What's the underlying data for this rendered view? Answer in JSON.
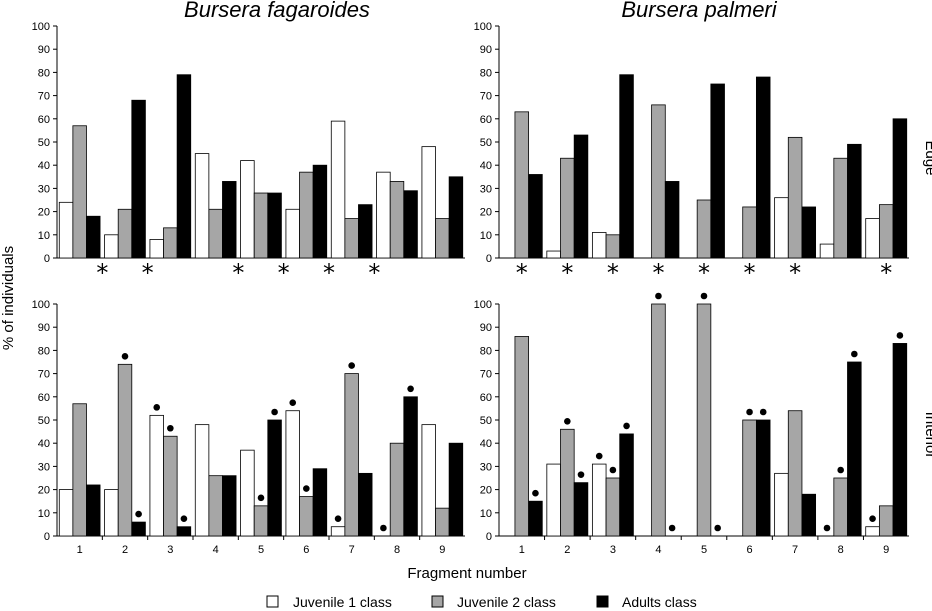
{
  "chart_data": {
    "type": "bar",
    "categories": [
      "1",
      "2",
      "3",
      "4",
      "5",
      "6",
      "7",
      "8",
      "9"
    ],
    "xlabel": "Fragment number",
    "ylabel": "% of individuals",
    "ylim": [
      0,
      100
    ],
    "yticks": [
      "0",
      "10",
      "20",
      "30",
      "40",
      "50",
      "60",
      "70",
      "80",
      "90",
      "100"
    ],
    "grid": false,
    "legend_position": "bottom",
    "colors": {
      "juvenile1": "#ffffff",
      "juvenile2": "#a6a6a6",
      "adults": "#000000"
    },
    "legend": [
      "Juvenile 1 class",
      "Juvenile 2 class",
      "Adults class"
    ],
    "panels": [
      {
        "title": "Bursera fagaroides",
        "row_label": "",
        "series": [
          {
            "name": "Juvenile 1 class",
            "values": [
              24,
              10,
              8,
              45,
              42,
              21,
              59,
              37,
              48
            ]
          },
          {
            "name": "Juvenile 2 class",
            "values": [
              57,
              21,
              13,
              21,
              28,
              37,
              17,
              33,
              17
            ]
          },
          {
            "name": "Adults class",
            "values": [
              18,
              68,
              79,
              33,
              28,
              40,
              23,
              29,
              35
            ]
          }
        ],
        "marker_symbol": "*",
        "markers": [
          [
            "2",
            "between"
          ],
          [
            "3",
            "between"
          ],
          [
            "5",
            "between"
          ],
          [
            "6",
            "between"
          ],
          [
            "7",
            "between"
          ],
          [
            "8",
            "between"
          ]
        ]
      },
      {
        "title": "Bursera palmeri",
        "row_label": "Edge",
        "series": [
          {
            "name": "Juvenile 1 class",
            "values": [
              0,
              3,
              11,
              0,
              0,
              0,
              26,
              6,
              17
            ]
          },
          {
            "name": "Juvenile 2 class",
            "values": [
              63,
              43,
              10,
              66,
              25,
              22,
              52,
              43,
              23
            ]
          },
          {
            "name": "Adults class",
            "values": [
              36,
              53,
              79,
              33,
              75,
              78,
              22,
              49,
              60
            ]
          }
        ],
        "marker_symbol": "*",
        "markers": [
          [
            "1",
            "center"
          ],
          [
            "2",
            "center"
          ],
          [
            "3",
            "center"
          ],
          [
            "4",
            "center"
          ],
          [
            "5",
            "center"
          ],
          [
            "6",
            "center"
          ],
          [
            "7",
            "center"
          ],
          [
            "9",
            "center"
          ]
        ]
      },
      {
        "title": "",
        "row_label": "",
        "series": [
          {
            "name": "Juvenile 1 class",
            "values": [
              20,
              20,
              52,
              48,
              37,
              54,
              4,
              0,
              48
            ]
          },
          {
            "name": "Juvenile 2 class",
            "values": [
              57,
              74,
              43,
              26,
              13,
              17,
              70,
              40,
              12
            ]
          },
          {
            "name": "Adults class",
            "values": [
              22,
              6,
              4,
              26,
              50,
              29,
              27,
              60,
              40
            ]
          }
        ],
        "marker_symbol": "dot",
        "dots": [
          [
            2,
            1
          ],
          [
            2,
            2
          ],
          [
            3,
            0
          ],
          [
            3,
            1
          ],
          [
            3,
            2
          ],
          [
            5,
            1
          ],
          [
            5,
            2
          ],
          [
            6,
            0
          ],
          [
            6,
            1
          ],
          [
            7,
            0
          ],
          [
            7,
            1
          ],
          [
            8,
            0
          ],
          [
            8,
            2
          ]
        ]
      },
      {
        "title": "",
        "row_label": "Interior",
        "series": [
          {
            "name": "Juvenile 1 class",
            "values": [
              0,
              31,
              31,
              0,
              0,
              0,
              27,
              0,
              4
            ]
          },
          {
            "name": "Juvenile 2 class",
            "values": [
              86,
              46,
              25,
              100,
              100,
              50,
              54,
              25,
              13
            ]
          },
          {
            "name": "Adults class",
            "values": [
              15,
              23,
              44,
              0,
              0,
              50,
              18,
              75,
              83
            ]
          }
        ],
        "marker_symbol": "dot",
        "dots": [
          [
            1,
            2
          ],
          [
            2,
            1
          ],
          [
            2,
            2
          ],
          [
            3,
            0
          ],
          [
            3,
            1
          ],
          [
            3,
            2
          ],
          [
            4,
            1
          ],
          [
            4,
            2
          ],
          [
            5,
            1
          ],
          [
            5,
            2
          ],
          [
            6,
            1
          ],
          [
            6,
            2
          ],
          [
            8,
            0
          ],
          [
            8,
            1
          ],
          [
            8,
            2
          ],
          [
            9,
            0
          ],
          [
            9,
            2
          ]
        ]
      }
    ]
  }
}
